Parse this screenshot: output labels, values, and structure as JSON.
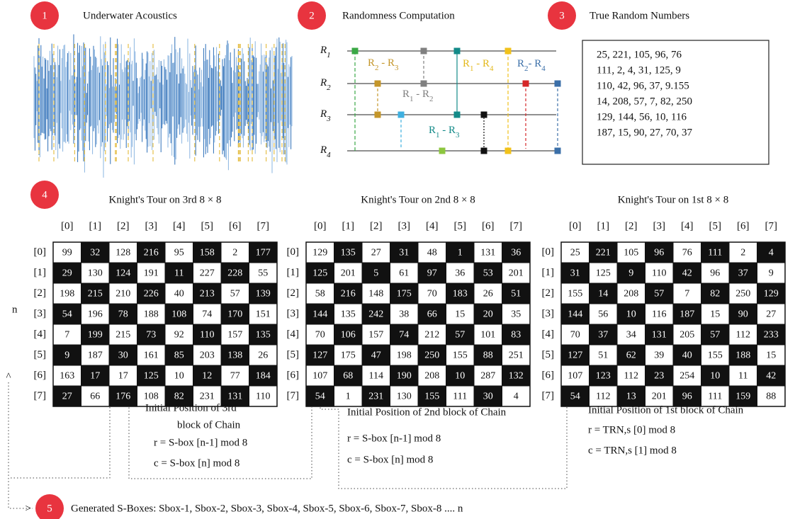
{
  "steps": [
    {
      "number": "1",
      "label": "Underwater Acoustics"
    },
    {
      "number": "2",
      "label": "Randomness Computation"
    },
    {
      "number": "3",
      "label": "True Random Numbers"
    },
    {
      "number": "4"
    },
    {
      "number": "5",
      "label": "Generated S-Boxes: Sbox-1, Sbox-2, Sbox-3, Sbox-4, Sbox-5, Sbox-6, Sbox-7, Sbox-8 .... n"
    }
  ],
  "circuit": {
    "wires": [
      "R1",
      "R2",
      "R3",
      "R4"
    ],
    "gates": [
      "R2 - R3",
      "R1 - R2",
      "R1 - R4",
      "R1 - R3",
      "R2- R4"
    ]
  },
  "random_numbers": [
    "25, 221, 105, 96, 76",
    "111, 2, 4, 31, 125, 9",
    "110, 42, 96, 37, 9.155",
    "14, 208, 57, 7, 82, 250",
    "129, 144, 56, 10, 116",
    "187, 15, 90, 27, 70, 37"
  ],
  "n_label": "n",
  "tours": [
    {
      "title": "Knight's Tour on 3rd 8 × 8",
      "col_headers": [
        "[0]",
        "[1]",
        "[2]",
        "[3]",
        "[4]",
        "[5]",
        "[6]",
        "[7]"
      ],
      "row_headers": [
        "[0]",
        "[1]",
        "[2]",
        "[3]",
        "[4]",
        "[5]",
        "[6]",
        "[7]"
      ],
      "cells": [
        [
          99,
          32,
          128,
          216,
          95,
          158,
          2,
          177
        ],
        [
          29,
          130,
          124,
          191,
          11,
          227,
          228,
          55
        ],
        [
          198,
          215,
          210,
          226,
          40,
          213,
          57,
          139
        ],
        [
          54,
          196,
          78,
          188,
          108,
          74,
          170,
          151
        ],
        [
          7,
          199,
          215,
          73,
          92,
          110,
          157,
          135
        ],
        [
          9,
          187,
          30,
          161,
          85,
          203,
          138,
          26
        ],
        [
          163,
          17,
          17,
          125,
          10,
          12,
          77,
          184
        ],
        [
          27,
          66,
          176,
          108,
          82,
          231,
          131,
          110
        ]
      ],
      "note": [
        "Initial Position of 3rd",
        "block of Chain",
        "r = S-box [n-1] mod 8",
        "c = S-box [n] mod 8"
      ]
    },
    {
      "title": "Knight's Tour on 2nd 8 × 8",
      "col_headers": [
        "[0]",
        "[1]",
        "[2]",
        "[3]",
        "[4]",
        "[5]",
        "[6]",
        "[7]"
      ],
      "row_headers": [
        "[0]",
        "[1]",
        "[2]",
        "[3]",
        "[4]",
        "[5]",
        "[6]",
        "[7]"
      ],
      "cells": [
        [
          129,
          135,
          27,
          31,
          48,
          1,
          131,
          36
        ],
        [
          125,
          201,
          5,
          61,
          97,
          36,
          53,
          201
        ],
        [
          58,
          216,
          148,
          175,
          70,
          183,
          26,
          51
        ],
        [
          144,
          135,
          242,
          38,
          66,
          15,
          20,
          35
        ],
        [
          70,
          106,
          157,
          74,
          212,
          57,
          101,
          83
        ],
        [
          127,
          175,
          47,
          198,
          250,
          155,
          88,
          251
        ],
        [
          107,
          68,
          114,
          190,
          208,
          10,
          287,
          132
        ],
        [
          54,
          1,
          231,
          130,
          155,
          111,
          30,
          4
        ]
      ],
      "note": [
        "Initial Position of 2nd block of Chain",
        "r = S-box [n-1] mod 8",
        "c = S-box [n] mod 8"
      ]
    },
    {
      "title": "Knight's Tour on 1st 8 × 8",
      "col_headers": [
        "[0]",
        "[1]",
        "[2]",
        "[3]",
        "[4]",
        "[5]",
        "[6]",
        "[7]"
      ],
      "row_headers": [
        "[0]",
        "[1]",
        "[2]",
        "[3]",
        "[4]",
        "[5]",
        "[6]",
        "[7]"
      ],
      "cells": [
        [
          25,
          221,
          105,
          96,
          76,
          111,
          2,
          4
        ],
        [
          31,
          125,
          9,
          110,
          42,
          96,
          37,
          9
        ],
        [
          155,
          14,
          208,
          57,
          7,
          82,
          250,
          129
        ],
        [
          144,
          56,
          10,
          116,
          187,
          15,
          90,
          27
        ],
        [
          70,
          37,
          34,
          131,
          205,
          57,
          112,
          233
        ],
        [
          127,
          51,
          62,
          39,
          40,
          155,
          188,
          15
        ],
        [
          107,
          123,
          112,
          23,
          254,
          10,
          11,
          42
        ],
        [
          54,
          112,
          13,
          201,
          96,
          111,
          159,
          88
        ]
      ],
      "note": [
        "Initial Position of 1st block of Chain",
        "r = TRN,s [0] mod 8",
        "c = TRN,s [1] mod 8"
      ]
    }
  ]
}
